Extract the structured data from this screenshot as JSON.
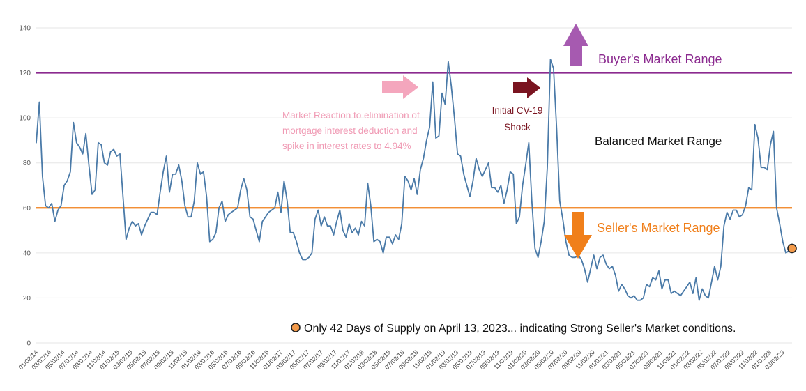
{
  "colors": {
    "series": "#4a7aa8",
    "buyer": "#8b2a8f",
    "seller": "#f07f1a",
    "pink": "#f4a6bd",
    "maroon": "#7a1420",
    "grid": "#e6e6e6",
    "axis_text": "#555555"
  },
  "chart_data": {
    "type": "line",
    "title": "",
    "xlabel": "",
    "ylabel": "",
    "ylim": [
      0,
      140
    ],
    "yticks": [
      0,
      20,
      40,
      60,
      80,
      100,
      120,
      140
    ],
    "grid": true,
    "xlim": [
      "2014-01-02",
      "2023-04-13"
    ],
    "x_tick_labels": [
      "01/02/14",
      "03/02/14",
      "05/02/14",
      "07/02/14",
      "09/02/14",
      "11/02/14",
      "01/02/15",
      "03/02/15",
      "05/02/15",
      "07/02/15",
      "09/02/15",
      "11/02/15",
      "01/02/16",
      "03/02/16",
      "05/02/16",
      "07/02/16",
      "09/02/16",
      "11/02/16",
      "01/02/17",
      "03/02/17",
      "05/02/17",
      "07/02/17",
      "09/02/17",
      "11/02/17",
      "01/02/18",
      "03/02/18",
      "05/02/18",
      "07/02/18",
      "09/02/18",
      "11/02/18",
      "01/02/19",
      "03/02/19",
      "05/02/19",
      "07/02/19",
      "09/02/19",
      "11/02/19",
      "01/02/20",
      "03/02/20",
      "05/02/20",
      "07/02/20",
      "09/02/20",
      "11/02/20",
      "01/02/21",
      "03/02/21",
      "05/02/21",
      "07/02/21",
      "09/02/21",
      "11/02/21",
      "01/02/22",
      "03/02/22",
      "05/02/22",
      "07/02/22",
      "09/02/22",
      "11/02/22",
      "01/02/23",
      "03/02/23"
    ],
    "series": [
      {
        "values": [
          89,
          107,
          74,
          61,
          60,
          62,
          54,
          59,
          61,
          70,
          72,
          76,
          98,
          89,
          87,
          84,
          93,
          79,
          66,
          68,
          89,
          88,
          80,
          79,
          85,
          86,
          83,
          84,
          65,
          46,
          51,
          54,
          52,
          53,
          48,
          52,
          55,
          58,
          58,
          57,
          67,
          76,
          83,
          67,
          75,
          75,
          79,
          72,
          61,
          56,
          56,
          63,
          80,
          75,
          76,
          65,
          45,
          46,
          49,
          60,
          63,
          54,
          57,
          58,
          59,
          60,
          68,
          73,
          68,
          56,
          55,
          50,
          45,
          54,
          56,
          58,
          59,
          60,
          67,
          58,
          72,
          63,
          49,
          49,
          45,
          40,
          37,
          37,
          38,
          40,
          55,
          59,
          52,
          56,
          52,
          52,
          48,
          54,
          59,
          50,
          47,
          53,
          49,
          51,
          48,
          54,
          52,
          71,
          61,
          45,
          46,
          45,
          40,
          47,
          47,
          44,
          48,
          46,
          53,
          74,
          72,
          68,
          73,
          66,
          77,
          82,
          90,
          96,
          116,
          91,
          92,
          111,
          106,
          125,
          114,
          100,
          84,
          83,
          75,
          70,
          65,
          72,
          82,
          77,
          74,
          77,
          80,
          69,
          69,
          67,
          70,
          62,
          68,
          76,
          75,
          53,
          56,
          70,
          79,
          89,
          63,
          42,
          38,
          45,
          54,
          78,
          126,
          122,
          95,
          63,
          55,
          45,
          39,
          38,
          38,
          39,
          37,
          33,
          27,
          33,
          39,
          33,
          38,
          39,
          35,
          33,
          34,
          30,
          23,
          26,
          24,
          21,
          20,
          21,
          19,
          19,
          20,
          26,
          25,
          29,
          28,
          32,
          24,
          28,
          28,
          22,
          23,
          22,
          21,
          23,
          25,
          27,
          22,
          29,
          19,
          24,
          21,
          20,
          27,
          34,
          28,
          34,
          52,
          58,
          55,
          59,
          59,
          56,
          57,
          61,
          69,
          68,
          97,
          91,
          78,
          78,
          77,
          88,
          94,
          60,
          53,
          45,
          40,
          41,
          42
        ],
        "x_start": "2014-01-02",
        "x_end": "2023-04-13"
      }
    ],
    "reference_lines": [
      {
        "name": "Buyer's Market Range",
        "y": 120,
        "color": "#8b2a8f"
      },
      {
        "name": "Seller's Market Range",
        "y": 60,
        "color": "#f07f1a"
      }
    ],
    "region_labels": {
      "buyer": "Buyer's Market Range",
      "balanced": "Balanced Market Range",
      "seller": "Seller's Market Range"
    },
    "annotations": {
      "mortgage": [
        "Market Reaction to elimination of",
        "mortgage interest deduction and",
        "spike in interest rates to 4.94%"
      ],
      "cv19": [
        "Initial CV-19",
        "Shock"
      ],
      "note": "Only 42 Days of Supply on April 13, 2023... indicating Strong Seller's Market conditions."
    },
    "highlight_point": {
      "x": "2023-04-13",
      "y": 42
    }
  }
}
